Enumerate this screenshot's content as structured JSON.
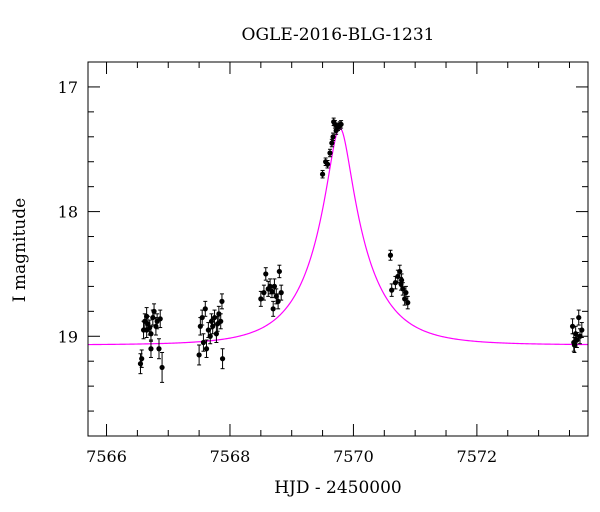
{
  "chart_data": {
    "type": "scatter",
    "title": "OGLE-2016-BLG-1231",
    "xlabel": "HJD - 2450000",
    "ylabel": "I magnitude",
    "xlim": [
      7565.7,
      7573.8
    ],
    "ylim": [
      19.8,
      16.8
    ],
    "y_inverted": true,
    "grid": false,
    "x_ticks": [
      7566,
      7568,
      7570,
      7572
    ],
    "y_ticks": [
      17,
      18,
      19
    ],
    "colors": {
      "data": "#000000",
      "model": "#ff00ff"
    },
    "model_curve": {
      "baseline_mag": 19.07,
      "peak_mag": 17.33,
      "t0": 7569.78,
      "color": "#ff00ff"
    },
    "series": [
      {
        "marker": "filled-circle",
        "points": [
          {
            "x": 7566.55,
            "y": 19.22,
            "err": 0.08
          },
          {
            "x": 7566.57,
            "y": 19.18,
            "err": 0.07
          },
          {
            "x": 7566.6,
            "y": 18.95,
            "err": 0.07
          },
          {
            "x": 7566.62,
            "y": 18.88,
            "err": 0.06
          },
          {
            "x": 7566.65,
            "y": 18.84,
            "err": 0.07
          },
          {
            "x": 7566.67,
            "y": 18.9,
            "err": 0.06
          },
          {
            "x": 7566.7,
            "y": 18.93,
            "err": 0.06
          },
          {
            "x": 7566.72,
            "y": 19.1,
            "err": 0.07
          },
          {
            "x": 7566.75,
            "y": 18.85,
            "err": 0.06
          },
          {
            "x": 7566.77,
            "y": 18.8,
            "err": 0.06
          },
          {
            "x": 7566.8,
            "y": 18.92,
            "err": 0.07
          },
          {
            "x": 7566.82,
            "y": 18.88,
            "err": 0.06
          },
          {
            "x": 7566.85,
            "y": 19.1,
            "err": 0.08
          },
          {
            "x": 7566.87,
            "y": 18.86,
            "err": 0.07
          },
          {
            "x": 7566.9,
            "y": 19.25,
            "err": 0.12
          },
          {
            "x": 7566.72,
            "y": 18.98,
            "err": 0.06
          },
          {
            "x": 7566.65,
            "y": 18.95,
            "err": 0.06
          },
          {
            "x": 7567.5,
            "y": 19.15,
            "err": 0.08
          },
          {
            "x": 7567.52,
            "y": 18.92,
            "err": 0.07
          },
          {
            "x": 7567.55,
            "y": 18.85,
            "err": 0.06
          },
          {
            "x": 7567.57,
            "y": 19.05,
            "err": 0.07
          },
          {
            "x": 7567.6,
            "y": 18.78,
            "err": 0.06
          },
          {
            "x": 7567.62,
            "y": 19.1,
            "err": 0.07
          },
          {
            "x": 7567.65,
            "y": 18.95,
            "err": 0.06
          },
          {
            "x": 7567.7,
            "y": 18.88,
            "err": 0.06
          },
          {
            "x": 7567.72,
            "y": 18.92,
            "err": 0.06
          },
          {
            "x": 7567.75,
            "y": 18.85,
            "err": 0.06
          },
          {
            "x": 7567.78,
            "y": 18.98,
            "err": 0.07
          },
          {
            "x": 7567.8,
            "y": 18.9,
            "err": 0.06
          },
          {
            "x": 7567.82,
            "y": 18.82,
            "err": 0.06
          },
          {
            "x": 7567.85,
            "y": 18.88,
            "err": 0.06
          },
          {
            "x": 7567.87,
            "y": 18.72,
            "err": 0.06
          },
          {
            "x": 7567.88,
            "y": 19.18,
            "err": 0.08
          },
          {
            "x": 7567.68,
            "y": 19.0,
            "err": 0.06
          },
          {
            "x": 7568.5,
            "y": 18.7,
            "err": 0.06
          },
          {
            "x": 7568.55,
            "y": 18.65,
            "err": 0.06
          },
          {
            "x": 7568.58,
            "y": 18.5,
            "err": 0.05
          },
          {
            "x": 7568.62,
            "y": 18.62,
            "err": 0.06
          },
          {
            "x": 7568.65,
            "y": 18.6,
            "err": 0.06
          },
          {
            "x": 7568.7,
            "y": 18.78,
            "err": 0.06
          },
          {
            "x": 7568.72,
            "y": 18.6,
            "err": 0.06
          },
          {
            "x": 7568.75,
            "y": 18.68,
            "err": 0.06
          },
          {
            "x": 7568.78,
            "y": 18.72,
            "err": 0.06
          },
          {
            "x": 7568.8,
            "y": 18.48,
            "err": 0.05
          },
          {
            "x": 7568.83,
            "y": 18.65,
            "err": 0.06
          },
          {
            "x": 7568.68,
            "y": 18.64,
            "err": 0.05
          },
          {
            "x": 7569.5,
            "y": 17.7,
            "err": 0.03
          },
          {
            "x": 7569.55,
            "y": 17.6,
            "err": 0.03
          },
          {
            "x": 7569.58,
            "y": 17.62,
            "err": 0.03
          },
          {
            "x": 7569.62,
            "y": 17.53,
            "err": 0.03
          },
          {
            "x": 7569.65,
            "y": 17.45,
            "err": 0.03
          },
          {
            "x": 7569.67,
            "y": 17.4,
            "err": 0.03
          },
          {
            "x": 7569.68,
            "y": 17.28,
            "err": 0.03
          },
          {
            "x": 7569.7,
            "y": 17.3,
            "err": 0.03
          },
          {
            "x": 7569.72,
            "y": 17.35,
            "err": 0.03
          },
          {
            "x": 7569.75,
            "y": 17.32,
            "err": 0.03
          },
          {
            "x": 7569.78,
            "y": 17.31,
            "err": 0.03
          },
          {
            "x": 7569.8,
            "y": 17.3,
            "err": 0.03
          },
          {
            "x": 7570.6,
            "y": 18.35,
            "err": 0.04
          },
          {
            "x": 7570.62,
            "y": 18.63,
            "err": 0.05
          },
          {
            "x": 7570.68,
            "y": 18.57,
            "err": 0.05
          },
          {
            "x": 7570.72,
            "y": 18.52,
            "err": 0.05
          },
          {
            "x": 7570.75,
            "y": 18.48,
            "err": 0.05
          },
          {
            "x": 7570.78,
            "y": 18.55,
            "err": 0.05
          },
          {
            "x": 7570.8,
            "y": 18.62,
            "err": 0.05
          },
          {
            "x": 7570.83,
            "y": 18.7,
            "err": 0.05
          },
          {
            "x": 7570.85,
            "y": 18.65,
            "err": 0.05
          },
          {
            "x": 7570.88,
            "y": 18.73,
            "err": 0.05
          },
          {
            "x": 7570.77,
            "y": 18.58,
            "err": 0.05
          },
          {
            "x": 7573.55,
            "y": 18.92,
            "err": 0.06
          },
          {
            "x": 7573.57,
            "y": 19.05,
            "err": 0.07
          },
          {
            "x": 7573.6,
            "y": 18.98,
            "err": 0.06
          },
          {
            "x": 7573.62,
            "y": 19.03,
            "err": 0.06
          },
          {
            "x": 7573.65,
            "y": 18.85,
            "err": 0.06
          },
          {
            "x": 7573.67,
            "y": 19.0,
            "err": 0.06
          },
          {
            "x": 7573.7,
            "y": 18.95,
            "err": 0.06
          },
          {
            "x": 7573.58,
            "y": 19.07,
            "err": 0.06
          }
        ]
      }
    ]
  }
}
